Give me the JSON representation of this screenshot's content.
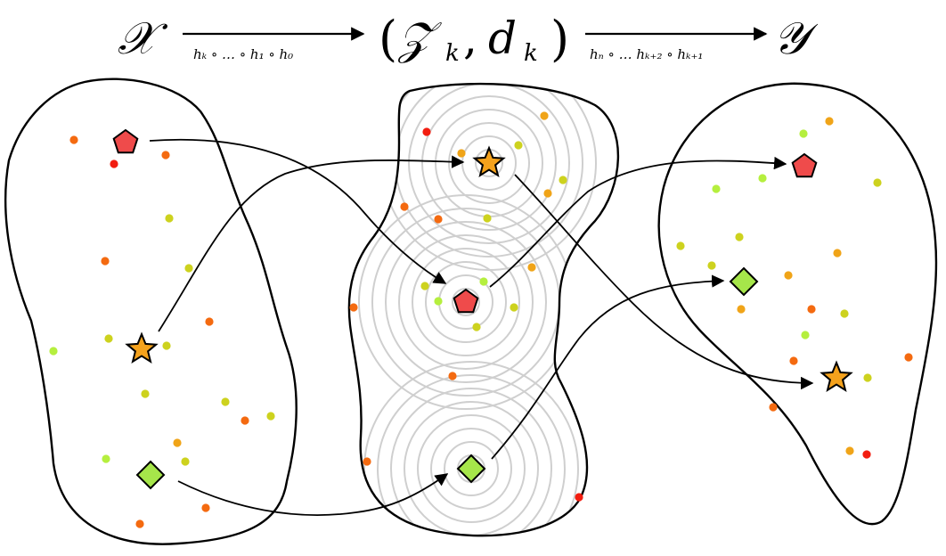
{
  "title": {
    "domain_symbol": "𝒳",
    "latent_open": "(",
    "latent_symbol": "𝒵",
    "latent_sub": "k",
    "latent_comma": ",",
    "latent_metric": "d",
    "latent_metric_sub": "k",
    "latent_close": ")",
    "codomain_symbol": "𝒴",
    "encoder_label": "hₖ ∘ … ∘ h₁ ∘ h₀",
    "decoder_label": "hₙ ∘ … hₖ₊₂ ∘ hₖ₊₁"
  },
  "colors": {
    "outline": "#000000",
    "rings": "#cfcfcf",
    "pentagon": "#ef4b4b",
    "star": "#f5a21c",
    "diamond": "#a6e64a",
    "dot_red": "#f21d10",
    "dot_orange": "#f46a10",
    "dot_amber": "#f0a418",
    "dot_yellow": "#cdd21e",
    "dot_lime": "#b5ef3e"
  },
  "shapes": {
    "x_space": [
      "pentagon",
      "star",
      "diamond"
    ],
    "z_space": [
      "star",
      "pentagon",
      "diamond"
    ],
    "y_space": [
      "pentagon",
      "diamond",
      "star"
    ]
  },
  "mappings": [
    {
      "shape": "pentagon",
      "from": "x_space",
      "to": "z_space"
    },
    {
      "shape": "star",
      "from": "x_space",
      "to": "z_space"
    },
    {
      "shape": "diamond",
      "from": "x_space",
      "to": "z_space"
    },
    {
      "shape": "pentagon",
      "from": "z_space",
      "to": "y_space"
    },
    {
      "shape": "star",
      "from": "z_space",
      "to": "y_space"
    },
    {
      "shape": "diamond",
      "from": "z_space",
      "to": "y_space"
    }
  ]
}
